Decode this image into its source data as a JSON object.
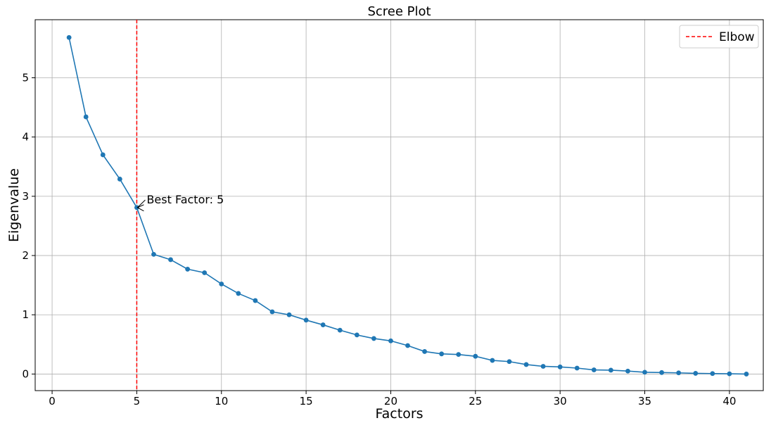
{
  "chart_data": {
    "type": "line",
    "title": "Scree Plot",
    "xlabel": "Factors",
    "ylabel": "Eigenvalue",
    "xlim": [
      -1,
      42
    ],
    "ylim": [
      -0.28,
      5.98
    ],
    "xticks": [
      0,
      5,
      10,
      15,
      20,
      25,
      30,
      35,
      40
    ],
    "yticks": [
      0,
      1,
      2,
      3,
      4,
      5
    ],
    "grid": true,
    "legend_position": "top-right",
    "series": [
      {
        "color": "#1f77b4",
        "marker": "circle",
        "x": [
          1,
          2,
          3,
          4,
          5,
          6,
          7,
          8,
          9,
          10,
          11,
          12,
          13,
          14,
          15,
          16,
          17,
          18,
          19,
          20,
          21,
          22,
          23,
          24,
          25,
          26,
          27,
          28,
          29,
          30,
          31,
          32,
          33,
          34,
          35,
          36,
          37,
          38,
          39,
          40,
          41
        ],
        "values": [
          5.68,
          4.34,
          3.7,
          3.29,
          2.81,
          2.02,
          1.93,
          1.77,
          1.71,
          1.52,
          1.36,
          1.24,
          1.05,
          1.0,
          0.91,
          0.83,
          0.74,
          0.66,
          0.6,
          0.56,
          0.48,
          0.38,
          0.34,
          0.33,
          0.3,
          0.23,
          0.21,
          0.16,
          0.13,
          0.12,
          0.1,
          0.07,
          0.065,
          0.05,
          0.03,
          0.025,
          0.02,
          0.012,
          0.008,
          0.004,
          0.0
        ]
      }
    ],
    "reference_lines": [
      {
        "orientation": "vertical",
        "x": 5,
        "name": "Elbow",
        "color": "#ff0000",
        "style": "dashed"
      }
    ],
    "annotation": {
      "text": "Best Factor: 5",
      "target_x": 5,
      "target_y": 2.81,
      "text_x": 5.5,
      "text_y": 2.95
    },
    "legend": [
      {
        "label": "Elbow",
        "color": "#ff0000",
        "style": "dashed"
      }
    ]
  }
}
